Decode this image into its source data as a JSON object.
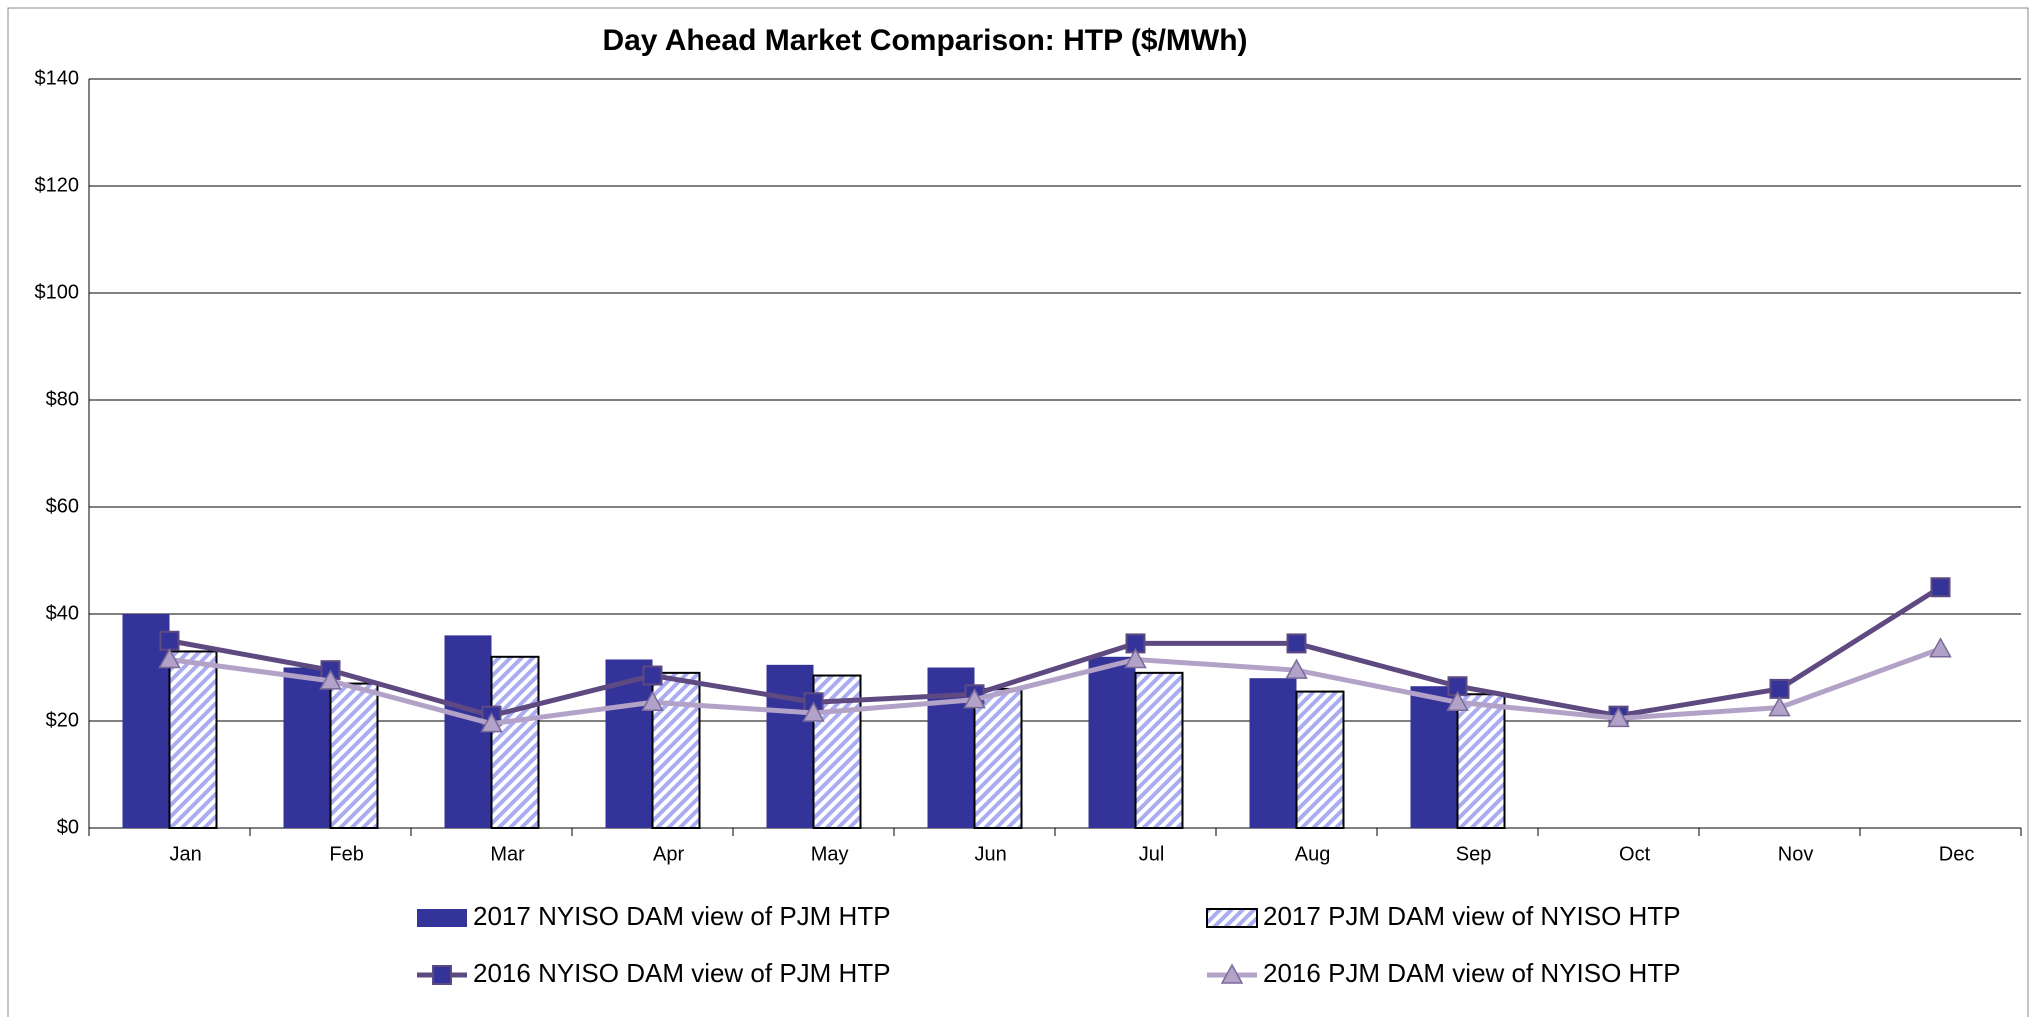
{
  "chart_data": {
    "type": "bar_line",
    "title": "Day Ahead Market Comparison: HTP ($/MWh)",
    "categories": [
      "Jan",
      "Feb",
      "Mar",
      "Apr",
      "May",
      "Jun",
      "Jul",
      "Aug",
      "Sep",
      "Oct",
      "Nov",
      "Dec"
    ],
    "series": [
      {
        "name": "2017 NYISO DAM view of PJM HTP",
        "kind": "bar",
        "color": "#333399",
        "values": [
          40,
          30,
          36,
          31.5,
          30.5,
          30,
          32,
          28,
          26.5,
          null,
          null,
          null
        ]
      },
      {
        "name": "2017 PJM DAM view of NYISO HTP",
        "kind": "bar",
        "color": "#a9acf0",
        "values": [
          33,
          27,
          32,
          29,
          28.5,
          26,
          29,
          25.5,
          25,
          null,
          null,
          null
        ]
      },
      {
        "name": "2016 NYISO DAM view of PJM  HTP",
        "kind": "line",
        "color": "#5e4a80",
        "values": [
          35,
          29.5,
          21,
          28.5,
          23.5,
          25,
          34.5,
          34.5,
          26.5,
          21,
          26,
          45
        ]
      },
      {
        "name": "2016 PJM DAM view of NYISO  HTP",
        "kind": "line",
        "color": "#b3a2c7",
        "values": [
          31.5,
          27.5,
          19.5,
          23.5,
          21.5,
          24,
          31.5,
          29.5,
          23.5,
          20.5,
          22.5,
          33.5
        ]
      }
    ],
    "ylim": [
      0,
      140
    ],
    "yticks": [
      {
        "value": 0,
        "label": "$0"
      },
      {
        "value": 20,
        "label": "$20"
      },
      {
        "value": 40,
        "label": "$40"
      },
      {
        "value": 60,
        "label": "$60"
      },
      {
        "value": 80,
        "label": "$80"
      },
      {
        "value": 100,
        "label": "$100"
      },
      {
        "value": 120,
        "label": "$120"
      },
      {
        "value": 140,
        "label": "$140"
      }
    ],
    "grid": true,
    "legend": "bottom"
  }
}
